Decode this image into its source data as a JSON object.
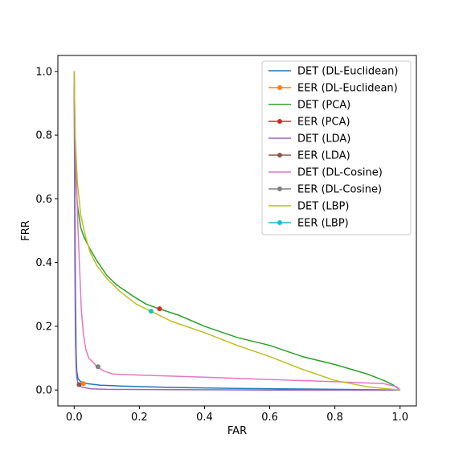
{
  "chart_data": {
    "type": "line",
    "title": "",
    "xlabel": "FAR",
    "ylabel": "FRR",
    "xlim": [
      -0.05,
      1.05
    ],
    "ylim": [
      -0.05,
      1.05
    ],
    "x_ticks": [
      0.0,
      0.2,
      0.4,
      0.6,
      0.8,
      1.0
    ],
    "x_tick_labels": [
      "0.0",
      "0.2",
      "0.4",
      "0.6",
      "0.8",
      "1.0"
    ],
    "y_ticks": [
      0.0,
      0.2,
      0.4,
      0.6,
      0.8,
      1.0
    ],
    "y_tick_labels": [
      "0.0",
      "0.2",
      "0.4",
      "0.6",
      "0.8",
      "1.0"
    ],
    "grid": false,
    "legend_position": "top-right",
    "series": [
      {
        "name": "DET (DL-Euclidean)",
        "kind": "line",
        "color": "#1f77b4",
        "points": [
          [
            0.0,
            1.0
          ],
          [
            0.002,
            0.6
          ],
          [
            0.004,
            0.3
          ],
          [
            0.006,
            0.12
          ],
          [
            0.008,
            0.06
          ],
          [
            0.012,
            0.035
          ],
          [
            0.02,
            0.026
          ],
          [
            0.04,
            0.02
          ],
          [
            0.08,
            0.015
          ],
          [
            0.15,
            0.012
          ],
          [
            0.3,
            0.008
          ],
          [
            0.5,
            0.005
          ],
          [
            0.7,
            0.003
          ],
          [
            0.9,
            0.001
          ],
          [
            1.0,
            0.0
          ]
        ]
      },
      {
        "name": "EER (DL-Euclidean)",
        "kind": "point",
        "color": "#ff7f0e",
        "points": [
          [
            0.028,
            0.02
          ]
        ]
      },
      {
        "name": "DET (PCA)",
        "kind": "line",
        "color": "#2ca02c",
        "points": [
          [
            0.0,
            1.0
          ],
          [
            0.003,
            0.7
          ],
          [
            0.01,
            0.58
          ],
          [
            0.02,
            0.51
          ],
          [
            0.03,
            0.48
          ],
          [
            0.05,
            0.44
          ],
          [
            0.07,
            0.405
          ],
          [
            0.1,
            0.36
          ],
          [
            0.13,
            0.33
          ],
          [
            0.18,
            0.295
          ],
          [
            0.22,
            0.27
          ],
          [
            0.26,
            0.255
          ],
          [
            0.32,
            0.235
          ],
          [
            0.4,
            0.2
          ],
          [
            0.5,
            0.165
          ],
          [
            0.6,
            0.14
          ],
          [
            0.7,
            0.105
          ],
          [
            0.8,
            0.08
          ],
          [
            0.9,
            0.05
          ],
          [
            0.95,
            0.03
          ],
          [
            0.98,
            0.015
          ],
          [
            1.0,
            0.0
          ]
        ]
      },
      {
        "name": "EER (PCA)",
        "kind": "point",
        "color": "#d62728",
        "points": [
          [
            0.262,
            0.255
          ]
        ]
      },
      {
        "name": "DET (LDA)",
        "kind": "line",
        "color": "#9467bd",
        "points": [
          [
            0.0,
            1.0
          ],
          [
            0.001,
            0.7
          ],
          [
            0.002,
            0.4
          ],
          [
            0.004,
            0.15
          ],
          [
            0.006,
            0.07
          ],
          [
            0.008,
            0.04
          ],
          [
            0.012,
            0.02
          ],
          [
            0.02,
            0.01
          ],
          [
            0.05,
            0.004
          ],
          [
            0.1,
            0.002
          ],
          [
            0.3,
            0.001
          ],
          [
            0.6,
            0.0
          ],
          [
            1.0,
            0.0
          ]
        ]
      },
      {
        "name": "EER (LDA)",
        "kind": "point",
        "color": "#8c564b",
        "points": [
          [
            0.015,
            0.017
          ]
        ]
      },
      {
        "name": "DET (DL-Cosine)",
        "kind": "line",
        "color": "#e377c2",
        "points": [
          [
            0.0,
            0.98
          ],
          [
            0.003,
            0.8
          ],
          [
            0.007,
            0.65
          ],
          [
            0.012,
            0.5
          ],
          [
            0.018,
            0.35
          ],
          [
            0.022,
            0.25
          ],
          [
            0.028,
            0.18
          ],
          [
            0.035,
            0.13
          ],
          [
            0.045,
            0.1
          ],
          [
            0.06,
            0.085
          ],
          [
            0.07,
            0.073
          ],
          [
            0.09,
            0.06
          ],
          [
            0.12,
            0.05
          ],
          [
            0.2,
            0.047
          ],
          [
            0.4,
            0.04
          ],
          [
            0.6,
            0.033
          ],
          [
            0.8,
            0.026
          ],
          [
            0.95,
            0.02
          ],
          [
            0.99,
            0.01
          ],
          [
            1.0,
            0.0
          ]
        ]
      },
      {
        "name": "EER (DL-Cosine)",
        "kind": "point",
        "color": "#7f7f7f",
        "points": [
          [
            0.073,
            0.073
          ]
        ]
      },
      {
        "name": "DET (LBP)",
        "kind": "line",
        "color": "#bcbd22",
        "points": [
          [
            0.0,
            1.0
          ],
          [
            0.003,
            0.8
          ],
          [
            0.01,
            0.65
          ],
          [
            0.02,
            0.55
          ],
          [
            0.035,
            0.48
          ],
          [
            0.05,
            0.43
          ],
          [
            0.07,
            0.39
          ],
          [
            0.1,
            0.35
          ],
          [
            0.14,
            0.31
          ],
          [
            0.19,
            0.27
          ],
          [
            0.236,
            0.247
          ],
          [
            0.3,
            0.215
          ],
          [
            0.4,
            0.18
          ],
          [
            0.5,
            0.14
          ],
          [
            0.6,
            0.105
          ],
          [
            0.7,
            0.065
          ],
          [
            0.8,
            0.03
          ],
          [
            0.9,
            0.01
          ],
          [
            1.0,
            0.0
          ]
        ]
      },
      {
        "name": "EER (LBP)",
        "kind": "point",
        "color": "#17becf",
        "points": [
          [
            0.236,
            0.247
          ]
        ]
      }
    ]
  }
}
